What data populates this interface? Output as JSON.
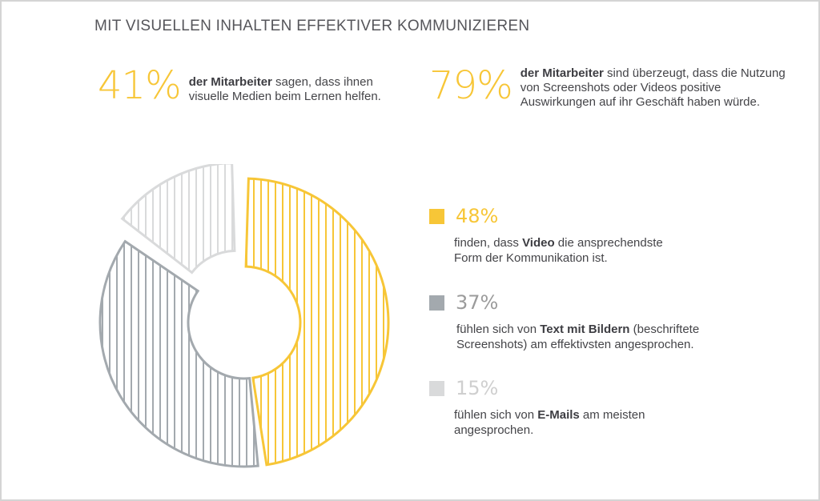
{
  "title": "MIT VISUELLEN INHALTEN EFFEKTIVER KOMMUNIZIEREN",
  "stats": [
    {
      "value": "41%",
      "bold": "der Mitarbeiter",
      "line1_rest": " sagen, dass ihnen",
      "line2": "visuelle Medien beim Lernen helfen."
    },
    {
      "value": "79%",
      "bold": "der Mitarbeiter",
      "line1_rest": " sind überzeugt, dass die Nutzung",
      "line2": "von Screenshots oder Videos positive",
      "line3": "Auswirkungen auf ihr Geschäft haben würde."
    }
  ],
  "legend": [
    {
      "pct": "48%",
      "pre": "finden, dass ",
      "bold": "Video",
      "post": " die ansprechendste",
      "line2": "Form der Kommunikation ist."
    },
    {
      "pct": "37%",
      "pre": "fühlen sich von ",
      "bold": "Text mit Bildern",
      "post": " (beschriftete",
      "line2": "Screenshots) am effektivsten angesprochen."
    },
    {
      "pct": "15%",
      "pre": "fühlen sich von ",
      "bold": "E-Mails",
      "post": " am meisten",
      "line2": "angesprochen."
    }
  ],
  "colors": {
    "video": "#f7c637",
    "text_bilder": "#a3a9ae",
    "email": "#d9dadb",
    "pct_37": "#9b9b9b",
    "pct_15": "#cfcfcf"
  },
  "chart_data": {
    "type": "pie",
    "categories": [
      "Video",
      "Text mit Bildern",
      "E-Mails"
    ],
    "values": [
      48,
      37,
      15
    ],
    "explode": [
      0,
      0,
      1
    ]
  }
}
